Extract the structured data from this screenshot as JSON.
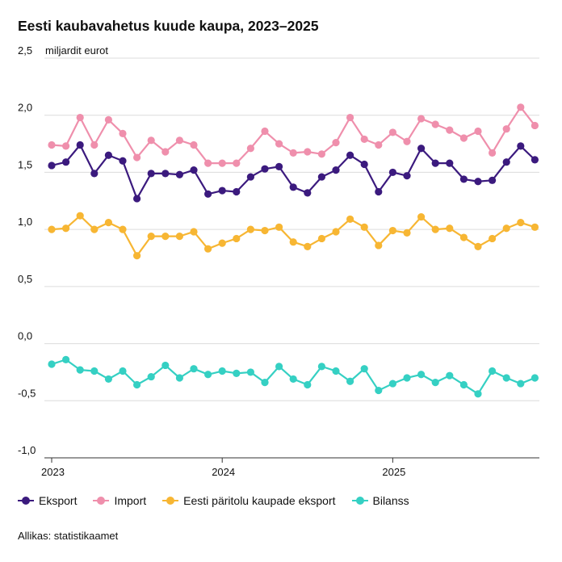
{
  "title": "Eesti kaubavahetus kuude kaupa, 2023–2025",
  "source": "Allikas: statistikaamet",
  "chart_data": {
    "type": "line",
    "title": "Eesti kaubavahetus kuude kaupa, 2023–2025",
    "ylabel": "miljardit eurot",
    "ylim": [
      -1.0,
      2.5
    ],
    "yticks": [
      "2,5",
      "2,0",
      "1,5",
      "1,0",
      "0,5",
      "0,0",
      "-0,5",
      "-1,0"
    ],
    "ytick_values": [
      2.5,
      2.0,
      1.5,
      1.0,
      0.5,
      0.0,
      -0.5,
      -1.0
    ],
    "xticks": [
      "2023",
      "2024",
      "2025"
    ],
    "x_start": "2023-01",
    "x_freq": "monthly",
    "grid": true,
    "legend_position": "bottom",
    "series": [
      {
        "name": "Eksport",
        "color": "#3b1a7e",
        "values": [
          1.56,
          1.59,
          1.74,
          1.49,
          1.65,
          1.6,
          1.27,
          1.49,
          1.49,
          1.48,
          1.52,
          1.31,
          1.34,
          1.33,
          1.46,
          1.53,
          1.55,
          1.37,
          1.32,
          1.46,
          1.52,
          1.65,
          1.57,
          1.33,
          1.5,
          1.47,
          1.71,
          1.58,
          1.58,
          1.44,
          1.42,
          1.43,
          1.59,
          1.73,
          1.61
        ]
      },
      {
        "name": "Import",
        "color": "#ef8fac",
        "values": [
          1.74,
          1.73,
          1.98,
          1.74,
          1.96,
          1.84,
          1.63,
          1.78,
          1.68,
          1.78,
          1.74,
          1.58,
          1.58,
          1.58,
          1.71,
          1.86,
          1.75,
          1.67,
          1.68,
          1.66,
          1.76,
          1.98,
          1.79,
          1.74,
          1.85,
          1.77,
          1.97,
          1.92,
          1.87,
          1.8,
          1.86,
          1.67,
          1.88,
          2.07,
          1.91
        ]
      },
      {
        "name": "Eesti päritolu kaupade eksport",
        "color": "#f7b633",
        "values": [
          1.0,
          1.01,
          1.12,
          1.0,
          1.06,
          1.0,
          0.77,
          0.94,
          0.94,
          0.94,
          0.98,
          0.83,
          0.88,
          0.92,
          1.0,
          0.99,
          1.02,
          0.89,
          0.85,
          0.92,
          0.98,
          1.09,
          1.02,
          0.86,
          0.99,
          0.97,
          1.11,
          1.0,
          1.01,
          0.93,
          0.85,
          0.92,
          1.01,
          1.06,
          1.02
        ]
      },
      {
        "name": "Bilanss",
        "color": "#35d0c3",
        "values": [
          -0.18,
          -0.14,
          -0.23,
          -0.24,
          -0.31,
          -0.24,
          -0.36,
          -0.29,
          -0.19,
          -0.3,
          -0.22,
          -0.27,
          -0.24,
          -0.26,
          -0.25,
          -0.34,
          -0.2,
          -0.31,
          -0.36,
          -0.2,
          -0.24,
          -0.33,
          -0.22,
          -0.41,
          -0.35,
          -0.3,
          -0.27,
          -0.34,
          -0.28,
          -0.36,
          -0.44,
          -0.24,
          -0.3,
          -0.35,
          -0.3
        ]
      }
    ]
  }
}
